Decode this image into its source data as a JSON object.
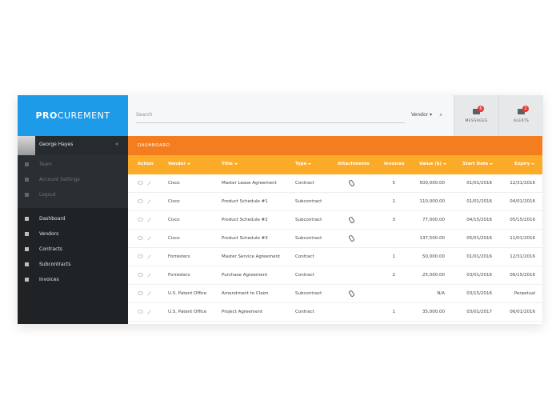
{
  "logo": {
    "bold": "PRO",
    "rest": "CUREMENT"
  },
  "search": {
    "placeholder": "Search",
    "filter": "Vendor"
  },
  "notifications": [
    {
      "label": "MESSAGES",
      "count": "6"
    },
    {
      "label": "ALERTS",
      "count": "2"
    }
  ],
  "user": {
    "name": "George Hayes",
    "collapse": "«"
  },
  "account_menu": [
    "Team",
    "Account Settings",
    "Logout"
  ],
  "main_menu": [
    "Dashboard",
    "Vendors",
    "Contracts",
    "Subcontracts",
    "Invoices"
  ],
  "section_title": "DASHBOARD",
  "table": {
    "columns": [
      "Action",
      "Vendor",
      "Title",
      "Type",
      "Attachments",
      "Invoices",
      "Value ($)",
      "Start Date",
      "Expiry"
    ],
    "rows": [
      {
        "vendor": "Cisco",
        "title": "Master Lease Agreement",
        "type": "Contract",
        "attachment": true,
        "invoices": "5",
        "value": "500,000.00",
        "start": "01/01/2016",
        "expiry": "12/31/2016"
      },
      {
        "vendor": "Cisco",
        "title": "Product Schedule #1",
        "type": "Subcontract",
        "attachment": false,
        "invoices": "1",
        "value": "110,000.00",
        "start": "01/01/2016",
        "expiry": "04/01/2016"
      },
      {
        "vendor": "Cisco",
        "title": "Product Schedule #2",
        "type": "Subcontract",
        "attachment": true,
        "invoices": "3",
        "value": "77,000.00",
        "start": "04/15/2016",
        "expiry": "05/15/2016"
      },
      {
        "vendor": "Cisco",
        "title": "Product Schedule #3",
        "type": "Subcontract",
        "attachment": true,
        "invoices": null,
        "value": "137,500.00",
        "start": "05/01/2016",
        "expiry": "11/01/2016"
      },
      {
        "vendor": "Forresters",
        "title": "Master Service Agreement",
        "type": "Contract",
        "attachment": false,
        "invoices": "1",
        "value": "50,000.00",
        "start": "01/01/2016",
        "expiry": "12/31/2016"
      },
      {
        "vendor": "Forresters",
        "title": "Purchase Agreement",
        "type": "Contract",
        "attachment": false,
        "invoices": "2",
        "value": "25,000.00",
        "start": "03/01/2016",
        "expiry": "06/15/2016"
      },
      {
        "vendor": "U.S. Patent Office",
        "title": "Amendment to Claim",
        "type": "Subcontract",
        "attachment": true,
        "invoices": null,
        "value": "N/A",
        "start": "03/15/2016",
        "expiry": "Perpetual"
      },
      {
        "vendor": "U.S. Patent Office",
        "title": "Project Agreement",
        "type": "Contract",
        "attachment": false,
        "invoices": "1",
        "value": "35,000.00",
        "start": "03/01/2017",
        "expiry": "06/01/2016"
      }
    ]
  }
}
